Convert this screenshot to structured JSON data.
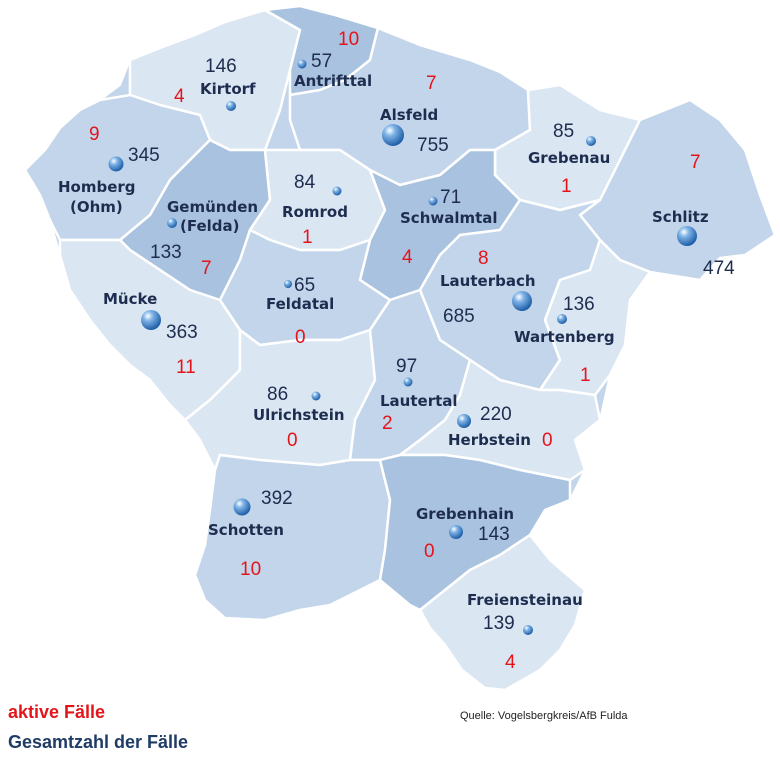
{
  "legend": {
    "active_label": "aktive Fälle",
    "total_label": "Gesamtzahl der Fälle"
  },
  "source": "Quelle: Vogelsbergkreis/AfB Fulda",
  "colors": {
    "active": "#e4141b",
    "total": "#1e2d4f",
    "region_light": "#dbe6f3",
    "region_mid": "#c2d5ea",
    "region_dark": "#a9c2e0",
    "border": "#ffffff"
  },
  "municipalities": [
    {
      "id": "kirtorf",
      "name": "Kirtorf",
      "total": "146",
      "active": "4"
    },
    {
      "id": "antrifttal",
      "name": "Antrifttal",
      "total": "57",
      "active": "10"
    },
    {
      "id": "alsfeld",
      "name": "Alsfeld",
      "total": "755",
      "active": "7"
    },
    {
      "id": "grebenau",
      "name": "Grebenau",
      "total": "85",
      "active": "1"
    },
    {
      "id": "schlitz",
      "name": "Schlitz",
      "total": "474",
      "active": "7"
    },
    {
      "id": "homberg",
      "name": "Homberg",
      "name2": "(Ohm)",
      "total": "345",
      "active": "9"
    },
    {
      "id": "gemuenden",
      "name": "Gemünden",
      "name2": "(Felda)",
      "total": "133",
      "active": "7"
    },
    {
      "id": "romrod",
      "name": "Romrod",
      "total": "84",
      "active": "1"
    },
    {
      "id": "schwalmtal",
      "name": "Schwalmtal",
      "total": "71",
      "active": "4"
    },
    {
      "id": "lauterbach",
      "name": "Lauterbach",
      "total": "685",
      "active": "8"
    },
    {
      "id": "wartenberg",
      "name": "Wartenberg",
      "total": "136",
      "active": "1"
    },
    {
      "id": "muecke",
      "name": "Mücke",
      "total": "363",
      "active": "11"
    },
    {
      "id": "feldatal",
      "name": "Feldatal",
      "total": "65",
      "active": "0"
    },
    {
      "id": "ulrichstein",
      "name": "Ulrichstein",
      "total": "86",
      "active": "0"
    },
    {
      "id": "lautertal",
      "name": "Lautertal",
      "total": "97",
      "active": "2"
    },
    {
      "id": "herbstein",
      "name": "Herbstein",
      "total": "220",
      "active": "0"
    },
    {
      "id": "schotten",
      "name": "Schotten",
      "total": "392",
      "active": "10"
    },
    {
      "id": "grebenhain",
      "name": "Grebenhain",
      "total": "143",
      "active": "0"
    },
    {
      "id": "freiensteinau",
      "name": "Freiensteinau",
      "total": "139",
      "active": "4"
    }
  ]
}
